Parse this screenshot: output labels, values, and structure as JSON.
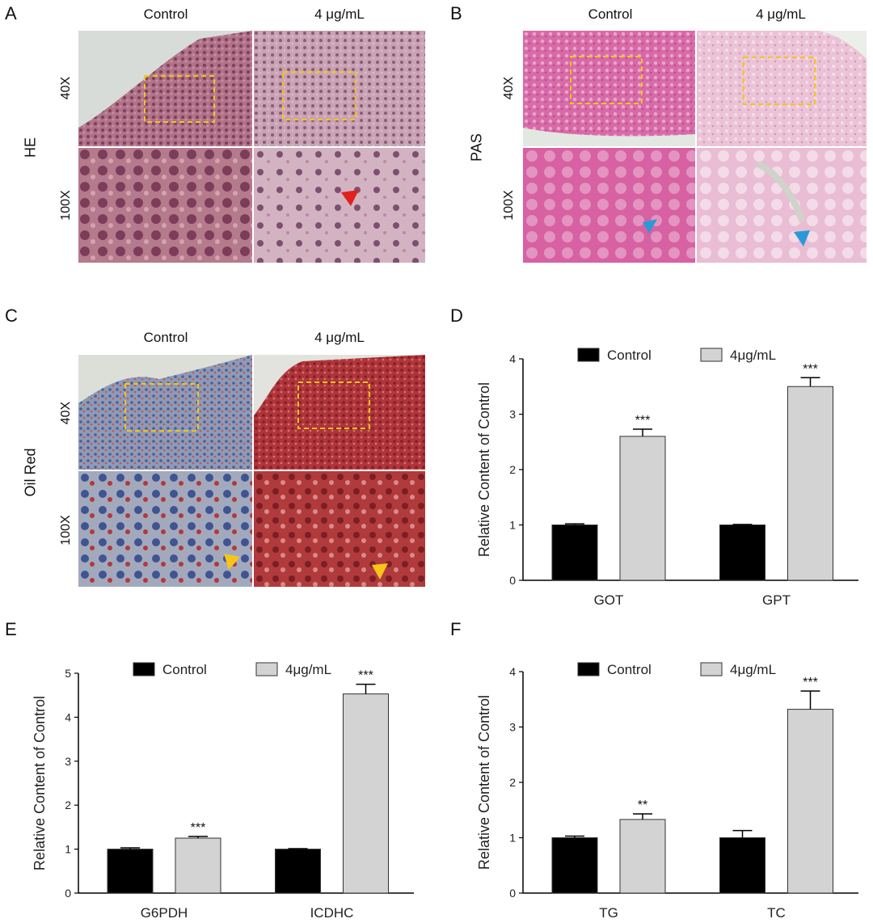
{
  "panels": {
    "A": {
      "letter": "A",
      "stain": "HE",
      "cols": [
        "Control",
        "4 μg/mL"
      ],
      "rows": [
        "40X",
        "100X"
      ]
    },
    "B": {
      "letter": "B",
      "stain": "PAS",
      "cols": [
        "Control",
        "4 μg/mL"
      ],
      "rows": [
        "40X",
        "100X"
      ]
    },
    "C": {
      "letter": "C",
      "stain": "Oil Red",
      "cols": [
        "Control",
        "4 μg/mL"
      ],
      "rows": [
        "40X",
        "100X"
      ]
    },
    "D": {
      "letter": "D"
    },
    "E": {
      "letter": "E"
    },
    "F": {
      "letter": "F"
    }
  },
  "colors": {
    "he_tissue": "#a8667e",
    "he_tissue_light": "#c9a2b4",
    "pas_tissue": "#d66aa8",
    "pas_tissue_light": "#e7bcd2",
    "oil_blue": "#6f7fa8",
    "oil_red": "#b5383c",
    "box": "#f2c418",
    "arrow_red": "#e0211c",
    "arrow_blue": "#2a9ad6",
    "arrow_yellow": "#f7c51a",
    "bar_control": "#000000",
    "bar_treated": "#d3d3d3"
  },
  "chart_data": [
    {
      "panel": "D",
      "type": "bar",
      "ylabel": "Relative Content of Control",
      "ylim": [
        0,
        4
      ],
      "yticks": [
        "0",
        "1",
        "2",
        "3",
        "4"
      ],
      "categories": [
        "GOT",
        "GPT"
      ],
      "series": [
        {
          "name": "Control",
          "values": [
            1.0,
            1.0
          ],
          "errors": [
            0.02,
            0.01
          ],
          "sig": [
            "",
            ""
          ]
        },
        {
          "name": "4μg/mL",
          "values": [
            2.6,
            3.5
          ],
          "errors": [
            0.13,
            0.16
          ],
          "sig": [
            "***",
            "***"
          ]
        }
      ],
      "legend": "top"
    },
    {
      "panel": "E",
      "type": "bar",
      "ylabel": "Relative Content of Control",
      "ylim": [
        0,
        5
      ],
      "yticks": [
        "0",
        "1",
        "2",
        "3",
        "4",
        "5"
      ],
      "categories": [
        "G6PDH",
        "ICDHC"
      ],
      "series": [
        {
          "name": "Control",
          "values": [
            1.0,
            1.0
          ],
          "errors": [
            0.03,
            0.01
          ],
          "sig": [
            "",
            ""
          ]
        },
        {
          "name": "4μg/mL",
          "values": [
            1.25,
            4.53
          ],
          "errors": [
            0.04,
            0.22
          ],
          "sig": [
            "***",
            "***"
          ]
        }
      ],
      "legend": "top"
    },
    {
      "panel": "F",
      "type": "bar",
      "ylabel": "Relative Content of Control",
      "ylim": [
        0,
        4
      ],
      "yticks": [
        "0",
        "1",
        "2",
        "3",
        "4"
      ],
      "categories": [
        "TG",
        "TC"
      ],
      "series": [
        {
          "name": "Control",
          "values": [
            1.0,
            1.0
          ],
          "errors": [
            0.03,
            0.13
          ],
          "sig": [
            "",
            ""
          ]
        },
        {
          "name": "4μg/mL",
          "values": [
            1.33,
            3.32
          ],
          "errors": [
            0.1,
            0.33
          ],
          "sig": [
            "**",
            "***"
          ]
        }
      ],
      "legend": "top"
    }
  ]
}
